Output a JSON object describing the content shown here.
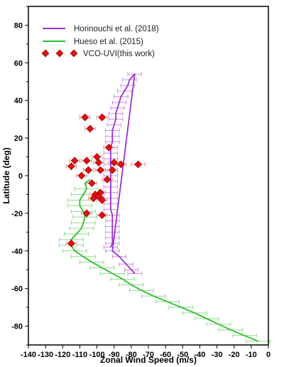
{
  "chart_data": {
    "type": "scatter",
    "xlabel": "Zonal Wind Speed (m/s)",
    "ylabel": "Latitude (deg)",
    "xlim": [
      -140,
      0
    ],
    "ylim": [
      -90,
      90
    ],
    "xticks": [
      -140,
      -130,
      -120,
      -110,
      -100,
      -90,
      -80,
      -70,
      -60,
      -50,
      -40,
      -30,
      -20,
      -10,
      0
    ],
    "yticks": [
      -80,
      -60,
      -40,
      -20,
      0,
      20,
      40,
      60,
      80
    ],
    "legend_position": "top-left",
    "grid": false,
    "series": [
      {
        "name": "Horinouchi et al. (2018)",
        "kind": "line",
        "color": "#9b30d0",
        "errcolor": "#c98ce8",
        "points": [
          [
            -92,
            -38,
            4
          ],
          [
            -91,
            -36,
            4
          ],
          [
            -91,
            -33,
            4
          ],
          [
            -91,
            -30,
            4
          ],
          [
            -91,
            -27,
            4
          ],
          [
            -91,
            -24,
            4
          ],
          [
            -91,
            -21,
            4
          ],
          [
            -92,
            -18,
            4
          ],
          [
            -92,
            -15,
            4
          ],
          [
            -92,
            -12,
            4
          ],
          [
            -92,
            -9,
            4
          ],
          [
            -92,
            -6,
            4
          ],
          [
            -92,
            -3,
            4
          ],
          [
            -92,
            0,
            4
          ],
          [
            -92,
            3,
            4
          ],
          [
            -92,
            6,
            4
          ],
          [
            -92,
            9,
            4
          ],
          [
            -92,
            12,
            4
          ],
          [
            -92,
            15,
            4
          ],
          [
            -91,
            18,
            4
          ],
          [
            -91,
            21,
            4
          ],
          [
            -91,
            24,
            4
          ],
          [
            -90,
            27,
            4
          ],
          [
            -89,
            30,
            4
          ],
          [
            -89,
            33,
            4
          ],
          [
            -88,
            36,
            4
          ],
          [
            -87,
            39,
            4
          ],
          [
            -86,
            42,
            4
          ],
          [
            -84,
            45,
            4
          ],
          [
            -82,
            48,
            4
          ],
          [
            -81,
            51,
            4
          ],
          [
            -78,
            54,
            4
          ]
        ],
        "tail": [
          [
            -91,
            -40
          ],
          [
            -87,
            -43
          ],
          [
            -83,
            -47
          ],
          [
            -80,
            -50
          ],
          [
            -78,
            -52
          ]
        ]
      },
      {
        "name": "Hueso et al. (2015)",
        "kind": "line",
        "color": "#2fbf2f",
        "errcolor": "#8fdc8f",
        "points": [
          [
            -106,
            -7,
            7
          ],
          [
            -108,
            -10,
            7
          ],
          [
            -110,
            -13,
            7
          ],
          [
            -110,
            -16,
            7
          ],
          [
            -108,
            -19,
            7
          ],
          [
            -107,
            -22,
            7
          ],
          [
            -108,
            -25,
            7
          ],
          [
            -109,
            -28,
            7
          ],
          [
            -112,
            -31,
            7
          ],
          [
            -115,
            -34,
            7
          ],
          [
            -115,
            -37,
            7
          ],
          [
            -113,
            -40,
            7
          ],
          [
            -108,
            -43,
            7
          ],
          [
            -103,
            -46,
            7
          ],
          [
            -97,
            -49,
            7
          ],
          [
            -91,
            -52,
            7
          ],
          [
            -85,
            -55,
            7
          ],
          [
            -80,
            -58,
            7
          ],
          [
            -74,
            -61,
            7
          ],
          [
            -67,
            -64,
            7
          ],
          [
            -59,
            -67,
            7
          ],
          [
            -51,
            -70,
            7
          ],
          [
            -43,
            -73,
            7
          ],
          [
            -36,
            -76,
            7
          ],
          [
            -29,
            -79,
            7
          ],
          [
            -22,
            -82,
            7
          ],
          [
            -14,
            -85,
            7
          ],
          [
            -6,
            -88,
            7
          ]
        ],
        "upper": [
          [
            -107,
            -4
          ],
          [
            -104,
            -2
          ]
        ]
      },
      {
        "name": "VCO-UVI(this work)",
        "kind": "scatter",
        "color": "#e01010",
        "errcolor": "#f09090",
        "points": [
          [
            -107,
            31,
            3
          ],
          [
            -97,
            31,
            3
          ],
          [
            -104,
            25,
            3
          ],
          [
            -93,
            15,
            3
          ],
          [
            -100,
            10,
            3
          ],
          [
            -113,
            8,
            3
          ],
          [
            -106,
            8,
            3
          ],
          [
            -99,
            7,
            3
          ],
          [
            -90,
            7,
            3
          ],
          [
            -86,
            6,
            3
          ],
          [
            -76,
            6,
            4
          ],
          [
            -115,
            5,
            3
          ],
          [
            -105,
            3,
            3
          ],
          [
            -98,
            3,
            3
          ],
          [
            -91,
            3,
            3
          ],
          [
            -109,
            0,
            3
          ],
          [
            -94,
            -2,
            3
          ],
          [
            -103,
            -4,
            3
          ],
          [
            -98,
            -9,
            3
          ],
          [
            -101,
            -10,
            3
          ],
          [
            -99,
            -11,
            3
          ],
          [
            -102,
            -12,
            3
          ],
          [
            -97,
            -13,
            3
          ],
          [
            -106,
            -20,
            3
          ],
          [
            -97,
            -21,
            3
          ],
          [
            -115,
            -36,
            3
          ]
        ]
      }
    ]
  }
}
